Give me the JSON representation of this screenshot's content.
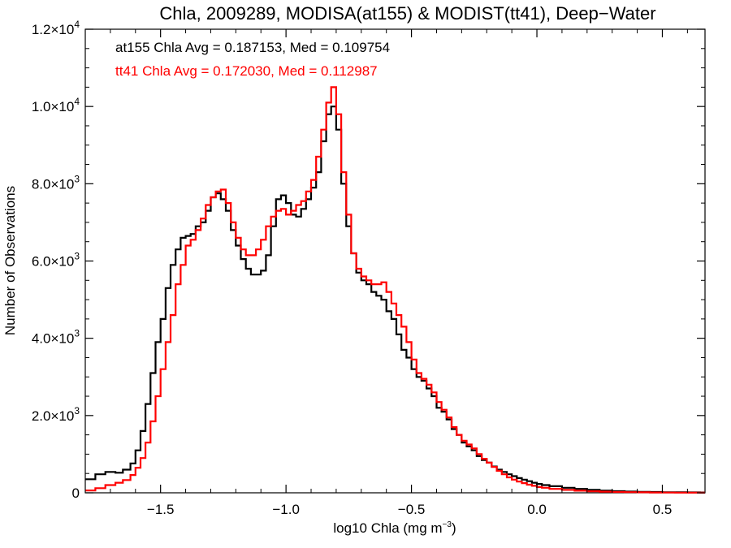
{
  "chart_data": {
    "type": "line",
    "style": "step-histogram",
    "title": "Chla, 2009289, MODISA(at155) & MODIST(tt41), Deep−Water",
    "xlabel_main": "log10 Chla (mg m",
    "xlabel_sup": "−3",
    "xlabel_close": ")",
    "ylabel": "Number of Observations",
    "xlim": [
      -1.8,
      0.67
    ],
    "ylim": [
      0,
      12000
    ],
    "x_ticks": [
      {
        "value": -1.5,
        "label": "−1.5"
      },
      {
        "value": -1.0,
        "label": "−1.0"
      },
      {
        "value": -0.5,
        "label": "−0.5"
      },
      {
        "value": 0.0,
        "label": "0.0"
      },
      {
        "value": 0.5,
        "label": "0.5"
      }
    ],
    "y_ticks": [
      {
        "value": 0,
        "base": "0",
        "exp": ""
      },
      {
        "value": 2000,
        "base": "2.0×10",
        "exp": "3"
      },
      {
        "value": 4000,
        "base": "4.0×10",
        "exp": "3"
      },
      {
        "value": 6000,
        "base": "6.0×10",
        "exp": "3"
      },
      {
        "value": 8000,
        "base": "8.0×10",
        "exp": "3"
      },
      {
        "value": 10000,
        "base": "1.0×10",
        "exp": "4"
      },
      {
        "value": 12000,
        "base": "1.2×10",
        "exp": "4"
      }
    ],
    "grid": false,
    "annotations": [
      {
        "text": "at155 Chla Avg = 0.187153, Med = 0.109754",
        "color": "#000000"
      },
      {
        "text": "tt41 Chla Avg = 0.172030, Med = 0.112987",
        "color": "#ff0000"
      }
    ],
    "series": [
      {
        "color": "#000000",
        "points": [
          [
            -1.8,
            350
          ],
          [
            -1.76,
            480
          ],
          [
            -1.72,
            540
          ],
          [
            -1.68,
            520
          ],
          [
            -1.65,
            600
          ],
          [
            -1.62,
            760
          ],
          [
            -1.6,
            1100
          ],
          [
            -1.58,
            1600
          ],
          [
            -1.56,
            2300
          ],
          [
            -1.54,
            3100
          ],
          [
            -1.52,
            3900
          ],
          [
            -1.5,
            4500
          ],
          [
            -1.48,
            5300
          ],
          [
            -1.46,
            5900
          ],
          [
            -1.44,
            6300
          ],
          [
            -1.42,
            6600
          ],
          [
            -1.4,
            6650
          ],
          [
            -1.38,
            6700
          ],
          [
            -1.36,
            6900
          ],
          [
            -1.34,
            7000
          ],
          [
            -1.32,
            7300
          ],
          [
            -1.3,
            7650
          ],
          [
            -1.28,
            7750
          ],
          [
            -1.26,
            7600
          ],
          [
            -1.24,
            7300
          ],
          [
            -1.22,
            6800
          ],
          [
            -1.2,
            6400
          ],
          [
            -1.18,
            6050
          ],
          [
            -1.16,
            5800
          ],
          [
            -1.14,
            5650
          ],
          [
            -1.12,
            5650
          ],
          [
            -1.1,
            5750
          ],
          [
            -1.08,
            6150
          ],
          [
            -1.06,
            6900
          ],
          [
            -1.04,
            7600
          ],
          [
            -1.02,
            7700
          ],
          [
            -1.0,
            7500
          ],
          [
            -0.98,
            7200
          ],
          [
            -0.96,
            7150
          ],
          [
            -0.94,
            7350
          ],
          [
            -0.92,
            7600
          ],
          [
            -0.9,
            7900
          ],
          [
            -0.88,
            8300
          ],
          [
            -0.86,
            9100
          ],
          [
            -0.84,
            9800
          ],
          [
            -0.82,
            10000
          ],
          [
            -0.8,
            9400
          ],
          [
            -0.78,
            8000
          ],
          [
            -0.76,
            6900
          ],
          [
            -0.74,
            6200
          ],
          [
            -0.72,
            5700
          ],
          [
            -0.7,
            5500
          ],
          [
            -0.68,
            5400
          ],
          [
            -0.66,
            5200
          ],
          [
            -0.64,
            5100
          ],
          [
            -0.62,
            5000
          ],
          [
            -0.6,
            4700
          ],
          [
            -0.58,
            4500
          ],
          [
            -0.56,
            4100
          ],
          [
            -0.54,
            3700
          ],
          [
            -0.52,
            3500
          ],
          [
            -0.5,
            3200
          ],
          [
            -0.48,
            3000
          ],
          [
            -0.46,
            2900
          ],
          [
            -0.44,
            2700
          ],
          [
            -0.42,
            2500
          ],
          [
            -0.4,
            2200
          ],
          [
            -0.38,
            2100
          ],
          [
            -0.36,
            1900
          ],
          [
            -0.34,
            1650
          ],
          [
            -0.32,
            1500
          ],
          [
            -0.3,
            1300
          ],
          [
            -0.28,
            1200
          ],
          [
            -0.26,
            1100
          ],
          [
            -0.24,
            950
          ],
          [
            -0.22,
            850
          ],
          [
            -0.2,
            780
          ],
          [
            -0.18,
            680
          ],
          [
            -0.16,
            600
          ],
          [
            -0.14,
            540
          ],
          [
            -0.12,
            480
          ],
          [
            -0.1,
            430
          ],
          [
            -0.08,
            380
          ],
          [
            -0.06,
            340
          ],
          [
            -0.04,
            300
          ],
          [
            -0.02,
            260
          ],
          [
            0.0,
            230
          ],
          [
            0.02,
            200
          ],
          [
            0.05,
            170
          ],
          [
            0.1,
            130
          ],
          [
            0.15,
            100
          ],
          [
            0.2,
            75
          ],
          [
            0.25,
            55
          ],
          [
            0.3,
            42
          ],
          [
            0.35,
            32
          ],
          [
            0.4,
            25
          ],
          [
            0.45,
            20
          ],
          [
            0.5,
            15
          ],
          [
            0.55,
            12
          ],
          [
            0.6,
            10
          ],
          [
            0.65,
            8
          ]
        ]
      },
      {
        "color": "#ff0000",
        "points": [
          [
            -1.8,
            60
          ],
          [
            -1.76,
            120
          ],
          [
            -1.72,
            200
          ],
          [
            -1.68,
            260
          ],
          [
            -1.65,
            330
          ],
          [
            -1.62,
            460
          ],
          [
            -1.6,
            650
          ],
          [
            -1.58,
            900
          ],
          [
            -1.56,
            1300
          ],
          [
            -1.54,
            1850
          ],
          [
            -1.52,
            2500
          ],
          [
            -1.5,
            3200
          ],
          [
            -1.48,
            3900
          ],
          [
            -1.46,
            4600
          ],
          [
            -1.44,
            5400
          ],
          [
            -1.42,
            5900
          ],
          [
            -1.4,
            6400
          ],
          [
            -1.38,
            6550
          ],
          [
            -1.36,
            6800
          ],
          [
            -1.34,
            7100
          ],
          [
            -1.32,
            7450
          ],
          [
            -1.3,
            7650
          ],
          [
            -1.28,
            7800
          ],
          [
            -1.26,
            7850
          ],
          [
            -1.24,
            7500
          ],
          [
            -1.22,
            7000
          ],
          [
            -1.2,
            6600
          ],
          [
            -1.18,
            6300
          ],
          [
            -1.16,
            6150
          ],
          [
            -1.14,
            6150
          ],
          [
            -1.12,
            6300
          ],
          [
            -1.1,
            6550
          ],
          [
            -1.08,
            6900
          ],
          [
            -1.06,
            7150
          ],
          [
            -1.04,
            7300
          ],
          [
            -1.02,
            7350
          ],
          [
            -1.0,
            7200
          ],
          [
            -0.98,
            7300
          ],
          [
            -0.96,
            7450
          ],
          [
            -0.94,
            7550
          ],
          [
            -0.92,
            7800
          ],
          [
            -0.9,
            8100
          ],
          [
            -0.88,
            8700
          ],
          [
            -0.86,
            9400
          ],
          [
            -0.84,
            10100
          ],
          [
            -0.82,
            10500
          ],
          [
            -0.8,
            9800
          ],
          [
            -0.78,
            8300
          ],
          [
            -0.76,
            7200
          ],
          [
            -0.74,
            6200
          ],
          [
            -0.72,
            5800
          ],
          [
            -0.7,
            5600
          ],
          [
            -0.68,
            5500
          ],
          [
            -0.66,
            5400
          ],
          [
            -0.64,
            5400
          ],
          [
            -0.62,
            5450
          ],
          [
            -0.6,
            5200
          ],
          [
            -0.58,
            4900
          ],
          [
            -0.56,
            4600
          ],
          [
            -0.54,
            4300
          ],
          [
            -0.52,
            3900
          ],
          [
            -0.5,
            3450
          ],
          [
            -0.48,
            3100
          ],
          [
            -0.46,
            2950
          ],
          [
            -0.44,
            2800
          ],
          [
            -0.42,
            2600
          ],
          [
            -0.4,
            2350
          ],
          [
            -0.38,
            2150
          ],
          [
            -0.36,
            1950
          ],
          [
            -0.34,
            1700
          ],
          [
            -0.32,
            1500
          ],
          [
            -0.3,
            1350
          ],
          [
            -0.28,
            1250
          ],
          [
            -0.26,
            1150
          ],
          [
            -0.24,
            1000
          ],
          [
            -0.22,
            880
          ],
          [
            -0.2,
            780
          ],
          [
            -0.18,
            670
          ],
          [
            -0.16,
            570
          ],
          [
            -0.14,
            480
          ],
          [
            -0.12,
            400
          ],
          [
            -0.1,
            340
          ],
          [
            -0.08,
            290
          ],
          [
            -0.06,
            250
          ],
          [
            -0.04,
            210
          ],
          [
            -0.02,
            180
          ],
          [
            0.0,
            150
          ],
          [
            0.02,
            130
          ],
          [
            0.05,
            100
          ],
          [
            0.1,
            75
          ],
          [
            0.15,
            55
          ],
          [
            0.2,
            40
          ],
          [
            0.25,
            30
          ],
          [
            0.3,
            22
          ],
          [
            0.35,
            16
          ],
          [
            0.4,
            12
          ],
          [
            0.45,
            9
          ],
          [
            0.5,
            7
          ],
          [
            0.55,
            5
          ],
          [
            0.6,
            4
          ],
          [
            0.65,
            3
          ]
        ]
      }
    ]
  }
}
